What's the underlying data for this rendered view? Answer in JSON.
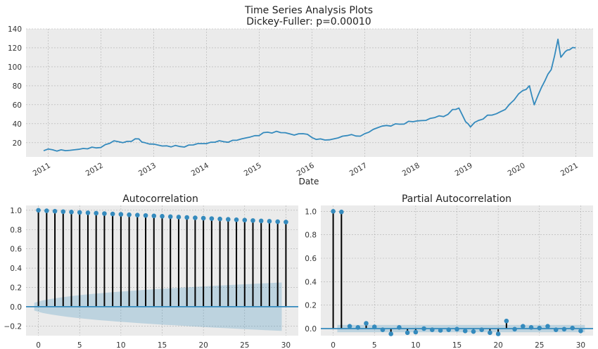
{
  "figure": {
    "title_line1": "Time Series Analysis Plots",
    "title_line2": "Dickey-Fuller: p=0.00010"
  },
  "colors": {
    "background": "#ebebeb",
    "grid": "#b0b0b0",
    "line": "#348abd",
    "stem": "#000000",
    "confidence_band": "#348abd",
    "zero_line": "#348abd"
  },
  "chart_data": [
    {
      "type": "line",
      "title": "",
      "xlabel": "Date",
      "ylabel": "",
      "x_ticks": [
        "2011",
        "2012",
        "2013",
        "2014",
        "2015",
        "2016",
        "2017",
        "2018",
        "2019",
        "2020",
        "2021"
      ],
      "y_ticks": [
        20,
        40,
        60,
        80,
        100,
        120,
        140
      ],
      "xlim": [
        "2010-08-01",
        "2021-05-01"
      ],
      "ylim": [
        5,
        140
      ],
      "grid": true,
      "series": [
        {
          "x": [
            "2010-12-01",
            "2011-02-01",
            "2011-04-01",
            "2011-06-01",
            "2011-08-01",
            "2011-10-01",
            "2011-12-01",
            "2012-02-01",
            "2012-04-01",
            "2012-06-01",
            "2012-08-01",
            "2012-09-20",
            "2012-11-01",
            "2013-01-01",
            "2013-03-01",
            "2013-05-01",
            "2013-07-01",
            "2013-09-01",
            "2013-11-01",
            "2014-01-01",
            "2014-03-01",
            "2014-05-01",
            "2014-07-01",
            "2014-09-01",
            "2014-11-01",
            "2015-01-01",
            "2015-03-01",
            "2015-05-01",
            "2015-07-01",
            "2015-09-01",
            "2015-11-01",
            "2016-01-01",
            "2016-03-01",
            "2016-05-01",
            "2016-07-01",
            "2016-09-01",
            "2016-11-01",
            "2017-01-01",
            "2017-03-01",
            "2017-05-01",
            "2017-07-01",
            "2017-09-01",
            "2017-11-01",
            "2018-01-01",
            "2018-03-01",
            "2018-05-01",
            "2018-07-01",
            "2018-09-01",
            "2018-10-15",
            "2018-12-01",
            "2019-01-03",
            "2019-03-01",
            "2019-05-01",
            "2019-07-01",
            "2019-09-01",
            "2019-11-01",
            "2020-01-01",
            "2020-02-15",
            "2020-03-20",
            "2020-04-15",
            "2020-06-01",
            "2020-07-15",
            "2020-08-31",
            "2020-09-20",
            "2020-10-20",
            "2020-11-20",
            "2020-12-31"
          ],
          "values": [
            11.5,
            12.5,
            12.5,
            12.0,
            13.0,
            13.5,
            14.5,
            18.0,
            22.0,
            20.0,
            21.5,
            24.0,
            20.0,
            18.5,
            16.5,
            15.5,
            16.0,
            17.5,
            19.0,
            19.0,
            20.5,
            21.0,
            22.5,
            24.0,
            26.0,
            27.5,
            31.0,
            32.0,
            30.5,
            28.0,
            29.5,
            25.5,
            24.0,
            23.0,
            25.0,
            27.5,
            27.0,
            29.5,
            34.0,
            37.5,
            37.5,
            39.5,
            42.5,
            43.0,
            43.5,
            46.5,
            47.5,
            55.0,
            56.5,
            42.0,
            36.5,
            43.5,
            49.0,
            50.5,
            55.0,
            65.0,
            75.0,
            80.0,
            60.0,
            70.0,
            85.0,
            97.0,
            129.0,
            110.0,
            116.0,
            118.0,
            120.0
          ]
        }
      ]
    },
    {
      "type": "stem",
      "title": "Autocorrelation",
      "x_ticks": [
        0,
        5,
        10,
        15,
        20,
        25,
        30
      ],
      "y_ticks": [
        -0.2,
        0.0,
        0.2,
        0.4,
        0.6,
        0.8,
        1.0
      ],
      "xlim": [
        -1.5,
        31.5
      ],
      "ylim": [
        -0.3,
        1.05
      ],
      "grid": true,
      "lags": [
        0,
        1,
        2,
        3,
        4,
        5,
        6,
        7,
        8,
        9,
        10,
        11,
        12,
        13,
        14,
        15,
        16,
        17,
        18,
        19,
        20,
        21,
        22,
        23,
        24,
        25,
        26,
        27,
        28,
        29,
        30
      ],
      "values": [
        1.0,
        0.995,
        0.99,
        0.986,
        0.982,
        0.978,
        0.974,
        0.97,
        0.966,
        0.962,
        0.958,
        0.954,
        0.95,
        0.946,
        0.942,
        0.938,
        0.934,
        0.93,
        0.926,
        0.922,
        0.918,
        0.914,
        0.91,
        0.906,
        0.902,
        0.898,
        0.894,
        0.89,
        0.886,
        0.882,
        0.878
      ],
      "confidence_band_upper": [
        0.04,
        0.065,
        0.08,
        0.093,
        0.105,
        0.115,
        0.124,
        0.132,
        0.14,
        0.147,
        0.154,
        0.16,
        0.166,
        0.172,
        0.178,
        0.183,
        0.188,
        0.193,
        0.198,
        0.203,
        0.208,
        0.213,
        0.218,
        0.222,
        0.226,
        0.231,
        0.235,
        0.239,
        0.243,
        0.247,
        0.251
      ]
    },
    {
      "type": "stem",
      "title": "Partial Autocorrelation",
      "x_ticks": [
        0,
        5,
        10,
        15,
        20,
        25,
        30
      ],
      "y_ticks": [
        0.0,
        0.2,
        0.4,
        0.6,
        0.8,
        1.0
      ],
      "xlim": [
        -1.5,
        31.5
      ],
      "ylim": [
        -0.06,
        1.05
      ],
      "grid": true,
      "lags": [
        0,
        1,
        2,
        3,
        4,
        5,
        6,
        7,
        8,
        9,
        10,
        11,
        12,
        13,
        14,
        15,
        16,
        17,
        18,
        19,
        20,
        21,
        22,
        23,
        24,
        25,
        26,
        27,
        28,
        29,
        30
      ],
      "values": [
        1.0,
        0.995,
        0.02,
        0.01,
        0.045,
        0.015,
        -0.01,
        -0.045,
        0.01,
        -0.035,
        -0.03,
        0.0,
        -0.01,
        -0.015,
        -0.01,
        -0.005,
        -0.02,
        -0.025,
        -0.01,
        -0.035,
        -0.045,
        0.065,
        -0.005,
        0.02,
        0.01,
        0.005,
        0.02,
        -0.01,
        -0.005,
        0.005,
        -0.02
      ],
      "confidence_band": 0.031
    }
  ]
}
